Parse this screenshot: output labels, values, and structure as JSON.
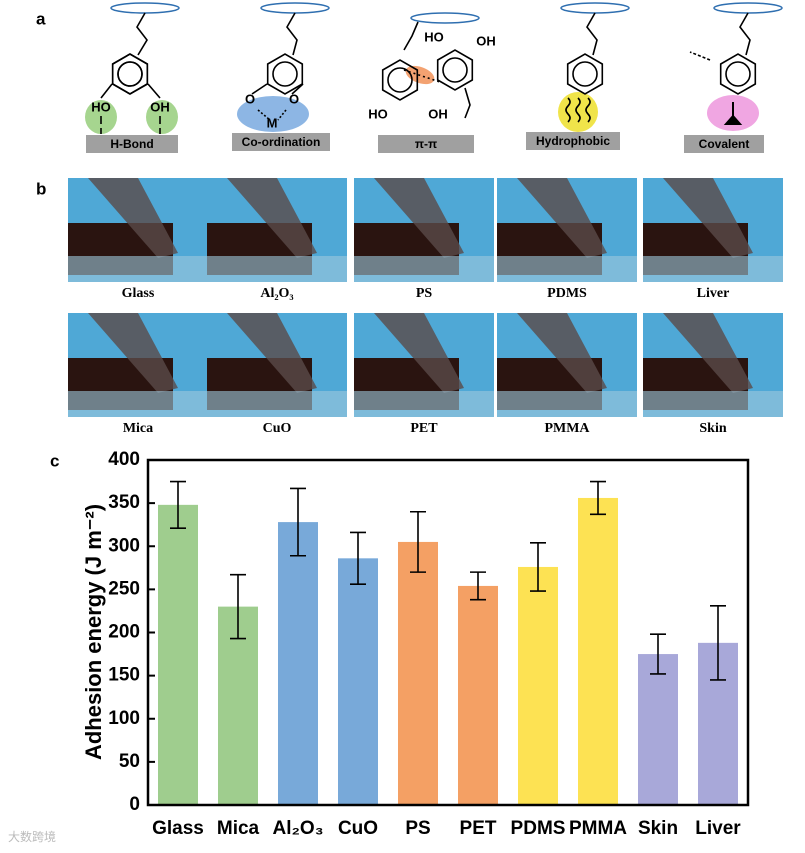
{
  "panel_labels": [
    "a",
    "b",
    "c"
  ],
  "motifs": [
    {
      "label": "H-Bond",
      "atoms": [
        "HO",
        "OH"
      ]
    },
    {
      "label": "Co-ordination",
      "atoms": [
        "O",
        "O",
        "M"
      ]
    },
    {
      "label": "π-π",
      "atoms": [
        "HO",
        "OH",
        "HO",
        "OH"
      ]
    },
    {
      "label": "Hydrophobic",
      "atoms": []
    },
    {
      "label": "Covalent",
      "atoms": []
    }
  ],
  "photos": {
    "row1": [
      "Glass",
      "Al₂O₃",
      "PS",
      "PDMS",
      "Liver"
    ],
    "row2": [
      "Mica",
      "CuO",
      "PET",
      "PMMA",
      "Skin"
    ]
  },
  "watermark": "大数跨境",
  "chart_data": {
    "type": "bar",
    "ylabel": "Adhesion energy (J m⁻²)",
    "categories": [
      "Glass",
      "Mica",
      "Al₂O₃",
      "CuO",
      "PS",
      "PET",
      "PDMS",
      "PMMA",
      "Skin",
      "Liver"
    ],
    "values": [
      348,
      230,
      328,
      286,
      305,
      254,
      276,
      356,
      175,
      188
    ],
    "errors": [
      27,
      37,
      39,
      30,
      35,
      16,
      28,
      19,
      23,
      43
    ],
    "colors": [
      "#9fcd8e",
      "#9fcd8e",
      "#78a9d9",
      "#78a9d9",
      "#f4a064",
      "#f4a064",
      "#fde253",
      "#fde253",
      "#a8a8d9",
      "#a8a8d9"
    ],
    "ylim": [
      0,
      400
    ],
    "yticks": [
      0,
      50,
      100,
      150,
      200,
      250,
      300,
      350,
      400
    ]
  }
}
